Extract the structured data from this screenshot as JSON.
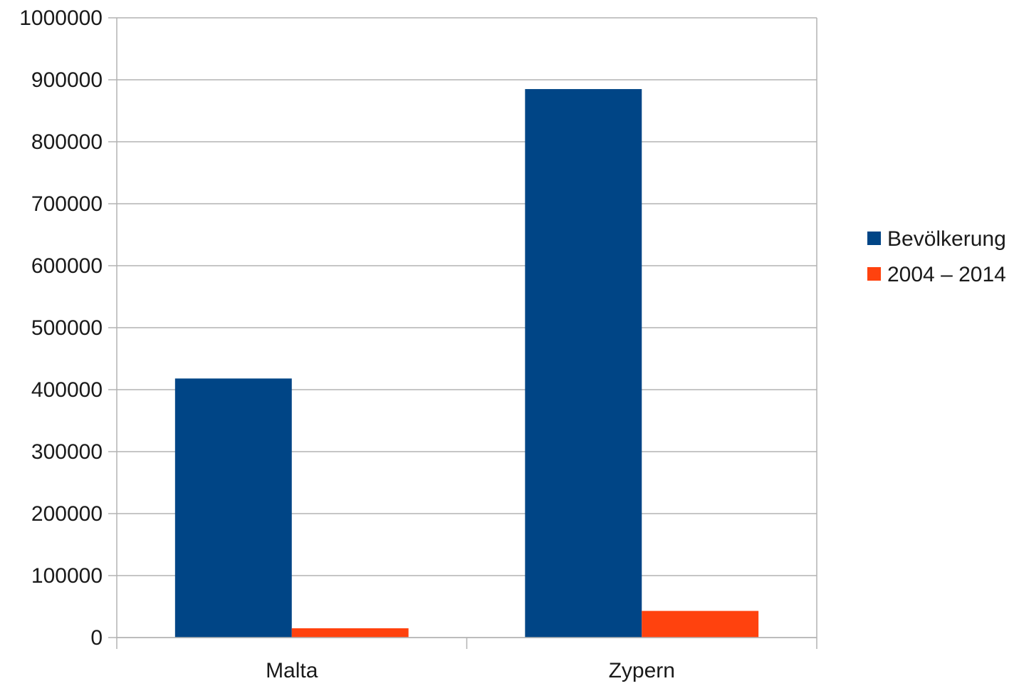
{
  "chart_data": {
    "type": "bar",
    "categories": [
      "Malta",
      "Zypern"
    ],
    "series": [
      {
        "name": "Bevölkerung",
        "values": [
          418000,
          885000
        ],
        "color": "#004586"
      },
      {
        "name": "2004 – 2014",
        "values": [
          15000,
          43000
        ],
        "color": "#ff420e"
      }
    ],
    "y_ticks": [
      "0",
      "100000",
      "200000",
      "300000",
      "400000",
      "500000",
      "600000",
      "700000",
      "800000",
      "900000",
      "1000000"
    ],
    "ylim": [
      0,
      1000000
    ],
    "title": "",
    "xlabel": "",
    "ylabel": "",
    "grid": true,
    "legend_position": "right"
  }
}
